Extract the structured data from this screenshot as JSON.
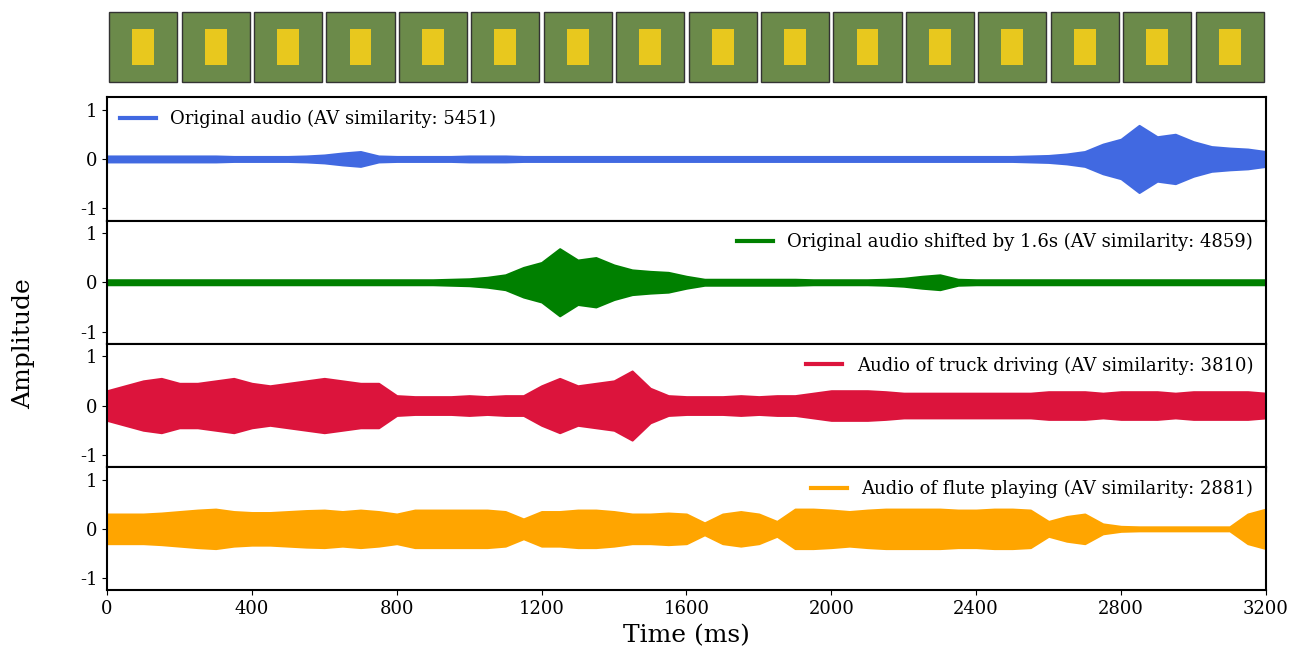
{
  "figure": {
    "x_label": "Time (ms)",
    "y_label": "Amplitude"
  },
  "chart_data": [
    {
      "type": "area",
      "tick_labels": "y",
      "legend": "upper left",
      "x": [
        0,
        50,
        100,
        150,
        200,
        250,
        300,
        350,
        400,
        450,
        500,
        550,
        600,
        650,
        700,
        750,
        800,
        850,
        900,
        950,
        1000,
        1050,
        1100,
        1150,
        1200,
        1250,
        1300,
        1350,
        1400,
        1450,
        1500,
        1550,
        1600,
        1650,
        1700,
        1750,
        1800,
        1850,
        1900,
        1950,
        2000,
        2050,
        2100,
        2150,
        2200,
        2250,
        2300,
        2350,
        2400,
        2450,
        2500,
        2550,
        2600,
        2650,
        2700,
        2750,
        2800,
        2850,
        2900,
        2950,
        3000,
        3050,
        3100,
        3150,
        3200
      ],
      "xlim": [
        0,
        3200
      ],
      "xticks": [
        0,
        400,
        800,
        1200,
        1600,
        2000,
        2400,
        2800,
        3200
      ],
      "ylim": [
        -1.25,
        1.25
      ],
      "yticks": [
        -1,
        0,
        1
      ],
      "series": [
        {
          "name": "Original audio (AV similarity: 5451)",
          "color": "#4169e1",
          "values": [
            0.06,
            0.06,
            0.06,
            0.06,
            0.06,
            0.06,
            0.06,
            0.05,
            0.05,
            0.05,
            0.05,
            0.06,
            0.08,
            0.12,
            0.15,
            0.06,
            0.05,
            0.05,
            0.05,
            0.05,
            0.06,
            0.06,
            0.06,
            0.05,
            0.05,
            0.05,
            0.05,
            0.05,
            0.05,
            0.05,
            0.05,
            0.05,
            0.05,
            0.05,
            0.05,
            0.05,
            0.05,
            0.05,
            0.05,
            0.05,
            0.05,
            0.05,
            0.05,
            0.05,
            0.05,
            0.05,
            0.05,
            0.05,
            0.05,
            0.05,
            0.05,
            0.06,
            0.07,
            0.1,
            0.15,
            0.3,
            0.4,
            0.68,
            0.45,
            0.5,
            0.35,
            0.25,
            0.22,
            0.2,
            0.15
          ]
        }
      ]
    },
    {
      "type": "area",
      "tick_labels": "y",
      "legend": "upper right",
      "x": [
        0,
        50,
        100,
        150,
        200,
        250,
        300,
        350,
        400,
        450,
        500,
        550,
        600,
        650,
        700,
        750,
        800,
        850,
        900,
        950,
        1000,
        1050,
        1100,
        1150,
        1200,
        1250,
        1300,
        1350,
        1400,
        1450,
        1500,
        1550,
        1600,
        1650,
        1700,
        1750,
        1800,
        1850,
        1900,
        1950,
        2000,
        2050,
        2100,
        2150,
        2200,
        2250,
        2300,
        2350,
        2400,
        2450,
        2500,
        2550,
        2600,
        2650,
        2700,
        2750,
        2800,
        2850,
        2900,
        2950,
        3000,
        3050,
        3100,
        3150,
        3200
      ],
      "xlim": [
        0,
        3200
      ],
      "xticks": [
        0,
        400,
        800,
        1200,
        1600,
        2000,
        2400,
        2800,
        3200
      ],
      "ylim": [
        -1.25,
        1.25
      ],
      "yticks": [
        -1,
        0,
        1
      ],
      "series": [
        {
          "name": "Original audio shifted by 1.6s (AV similarity: 4859)",
          "color": "#008000",
          "values": [
            0.05,
            0.05,
            0.05,
            0.05,
            0.05,
            0.05,
            0.05,
            0.05,
            0.05,
            0.05,
            0.05,
            0.05,
            0.05,
            0.05,
            0.05,
            0.05,
            0.05,
            0.05,
            0.05,
            0.06,
            0.07,
            0.1,
            0.15,
            0.3,
            0.4,
            0.68,
            0.45,
            0.5,
            0.35,
            0.25,
            0.22,
            0.2,
            0.12,
            0.06,
            0.06,
            0.06,
            0.06,
            0.06,
            0.06,
            0.05,
            0.05,
            0.05,
            0.05,
            0.06,
            0.08,
            0.12,
            0.15,
            0.06,
            0.05,
            0.05,
            0.05,
            0.05,
            0.05,
            0.05,
            0.05,
            0.05,
            0.05,
            0.05,
            0.05,
            0.05,
            0.05,
            0.05,
            0.05,
            0.05,
            0.05
          ]
        }
      ]
    },
    {
      "type": "area",
      "tick_labels": "y",
      "legend": "upper right",
      "x": [
        0,
        50,
        100,
        150,
        200,
        250,
        300,
        350,
        400,
        450,
        500,
        550,
        600,
        650,
        700,
        750,
        800,
        850,
        900,
        950,
        1000,
        1050,
        1100,
        1150,
        1200,
        1250,
        1300,
        1350,
        1400,
        1450,
        1500,
        1550,
        1600,
        1650,
        1700,
        1750,
        1800,
        1850,
        1900,
        1950,
        2000,
        2050,
        2100,
        2150,
        2200,
        2250,
        2300,
        2350,
        2400,
        2450,
        2500,
        2550,
        2600,
        2650,
        2700,
        2750,
        2800,
        2850,
        2900,
        2950,
        3000,
        3050,
        3100,
        3150,
        3200
      ],
      "xlim": [
        0,
        3200
      ],
      "xticks": [
        0,
        400,
        800,
        1200,
        1600,
        2000,
        2400,
        2800,
        3200
      ],
      "ylim": [
        -1.25,
        1.25
      ],
      "yticks": [
        -1,
        0,
        1
      ],
      "series": [
        {
          "name": "Audio of truck driving (AV similarity: 3810)",
          "color": "#dc143c",
          "values": [
            0.3,
            0.4,
            0.5,
            0.55,
            0.45,
            0.45,
            0.5,
            0.55,
            0.45,
            0.4,
            0.45,
            0.5,
            0.55,
            0.5,
            0.45,
            0.45,
            0.2,
            0.18,
            0.18,
            0.18,
            0.2,
            0.18,
            0.2,
            0.2,
            0.4,
            0.55,
            0.4,
            0.45,
            0.5,
            0.7,
            0.35,
            0.2,
            0.18,
            0.18,
            0.18,
            0.2,
            0.18,
            0.2,
            0.2,
            0.25,
            0.3,
            0.3,
            0.3,
            0.28,
            0.25,
            0.25,
            0.25,
            0.25,
            0.25,
            0.25,
            0.25,
            0.25,
            0.28,
            0.28,
            0.28,
            0.25,
            0.28,
            0.28,
            0.28,
            0.25,
            0.28,
            0.28,
            0.28,
            0.28,
            0.25
          ]
        }
      ]
    },
    {
      "type": "area",
      "legend": "upper right",
      "x": [
        0,
        50,
        100,
        150,
        200,
        250,
        300,
        350,
        400,
        450,
        500,
        550,
        600,
        650,
        700,
        750,
        800,
        850,
        900,
        950,
        1000,
        1050,
        1100,
        1150,
        1200,
        1250,
        1300,
        1350,
        1400,
        1450,
        1500,
        1550,
        1600,
        1650,
        1700,
        1750,
        1800,
        1850,
        1900,
        1950,
        2000,
        2050,
        2100,
        2150,
        2200,
        2250,
        2300,
        2350,
        2400,
        2450,
        2500,
        2550,
        2600,
        2650,
        2700,
        2750,
        2800,
        2850,
        2900,
        2950,
        3000,
        3050,
        3100,
        3150,
        3200
      ],
      "xlim": [
        0,
        3200
      ],
      "xticks": [
        0,
        400,
        800,
        1200,
        1600,
        2000,
        2400,
        2800,
        3200
      ],
      "ylim": [
        -1.25,
        1.25
      ],
      "yticks": [
        -1,
        0,
        1
      ],
      "series": [
        {
          "name": "Audio of flute playing (AV similarity: 2881)",
          "color": "#ffa500",
          "values": [
            0.3,
            0.3,
            0.3,
            0.32,
            0.35,
            0.38,
            0.4,
            0.35,
            0.33,
            0.33,
            0.35,
            0.37,
            0.38,
            0.35,
            0.38,
            0.35,
            0.3,
            0.38,
            0.38,
            0.38,
            0.38,
            0.38,
            0.35,
            0.2,
            0.35,
            0.35,
            0.38,
            0.38,
            0.35,
            0.3,
            0.3,
            0.32,
            0.3,
            0.12,
            0.3,
            0.35,
            0.3,
            0.15,
            0.4,
            0.4,
            0.38,
            0.35,
            0.38,
            0.4,
            0.4,
            0.4,
            0.4,
            0.38,
            0.38,
            0.4,
            0.4,
            0.38,
            0.15,
            0.25,
            0.3,
            0.1,
            0.05,
            0.04,
            0.04,
            0.04,
            0.04,
            0.04,
            0.04,
            0.3,
            0.4
          ]
        }
      ]
    }
  ]
}
